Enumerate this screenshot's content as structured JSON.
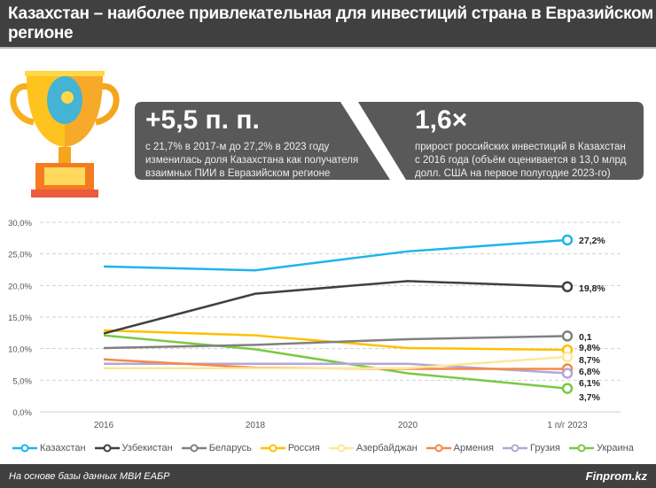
{
  "header": {
    "title": "Казахстан – наиболее привлекательная для инвестиций страна в Евразийском регионе"
  },
  "stats": [
    {
      "value": "+5,5 п. п.",
      "text": "с 21,7% в 2017-м до 27,2% в 2023 году изменилась доля Казахстана как получателя взаимных ПИИ в Евразийском регионе"
    },
    {
      "value": "1,6×",
      "text": "прирост российских инвестиций в Казахстан с 2016 года (объём оценивается в 13,0 млрд долл. США на первое полугодие 2023-го)"
    }
  ],
  "chart_data": {
    "type": "line",
    "categories": [
      "2016",
      "2018",
      "2020",
      "1 п/г 2023"
    ],
    "ylim": [
      0,
      30
    ],
    "yticks": [
      "0,0%",
      "5,0%",
      "10,0%",
      "15,0%",
      "20,0%",
      "25,0%",
      "30,0%"
    ],
    "grid": true,
    "legend_position": "bottom",
    "series": [
      {
        "name": "Казахстан",
        "color": "#1fb4ec",
        "values": [
          23.0,
          22.4,
          25.4,
          27.2
        ],
        "end_label": "27,2%"
      },
      {
        "name": "Узбекистан",
        "color": "#404040",
        "values": [
          12.4,
          18.7,
          20.7,
          19.8
        ],
        "end_label": "19,8%"
      },
      {
        "name": "Беларусь",
        "color": "#808080",
        "values": [
          10.1,
          10.6,
          11.5,
          12.0
        ],
        "end_label": "0,1"
      },
      {
        "name": "Россия",
        "color": "#ffc000",
        "values": [
          12.9,
          12.1,
          10.1,
          9.8
        ],
        "end_label": "9,8%"
      },
      {
        "name": "Азербайджан",
        "color": "#ffe699",
        "values": [
          6.9,
          6.9,
          6.9,
          8.7
        ],
        "end_label": "8,7%"
      },
      {
        "name": "Армения",
        "color": "#f4894a",
        "values": [
          8.3,
          7.0,
          6.8,
          6.8
        ],
        "end_label": "6,8%"
      },
      {
        "name": "Грузия",
        "color": "#b4a7d6",
        "values": [
          7.6,
          7.6,
          7.6,
          6.1
        ],
        "end_label": "6,1%"
      },
      {
        "name": "Украина",
        "color": "#7ac943",
        "values": [
          12.1,
          9.9,
          6.1,
          3.7
        ],
        "end_label": "3,7%"
      }
    ]
  },
  "footer": {
    "source": "На основе базы данных МВИ ЕАБР",
    "brand": "Finprom.kz"
  }
}
